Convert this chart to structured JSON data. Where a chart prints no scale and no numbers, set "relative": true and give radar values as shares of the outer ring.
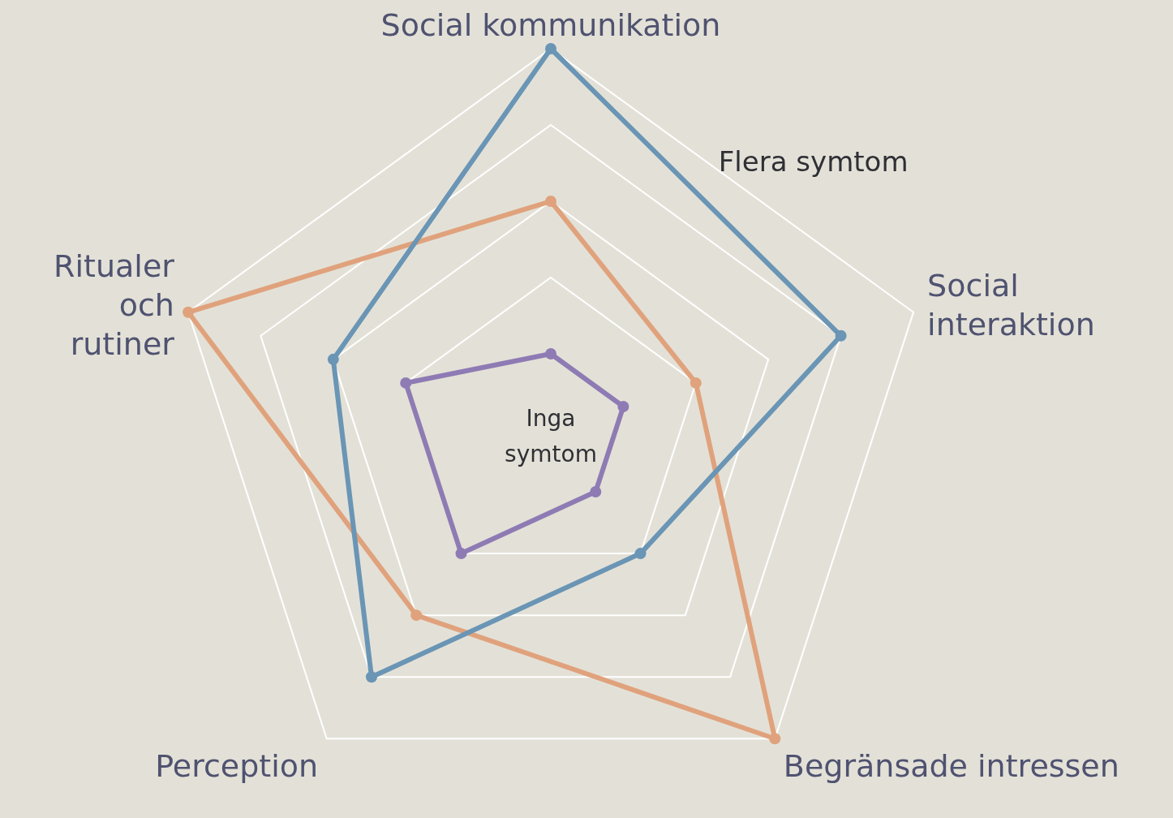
{
  "chart_data": {
    "type": "radar",
    "relative": true,
    "categories": [
      "Social kommunikation",
      "Social interaktion",
      "Begränsade intressen",
      "Perception",
      "Ritualer och rutiner"
    ],
    "series": [
      {
        "color": "#6a95b5",
        "values": [
          1.0,
          0.8,
          0.4,
          0.8,
          0.6
        ]
      },
      {
        "color": "#e0a27c",
        "values": [
          0.6,
          0.4,
          1.0,
          0.6,
          1.0
        ]
      },
      {
        "color": "#8e7bb4",
        "values": [
          0.2,
          0.2,
          0.2,
          0.4,
          0.4
        ]
      }
    ],
    "annotations": [
      "Flera symtom",
      "Inga symtom"
    ],
    "marker": "circle",
    "legend": false,
    "grid": true
  }
}
